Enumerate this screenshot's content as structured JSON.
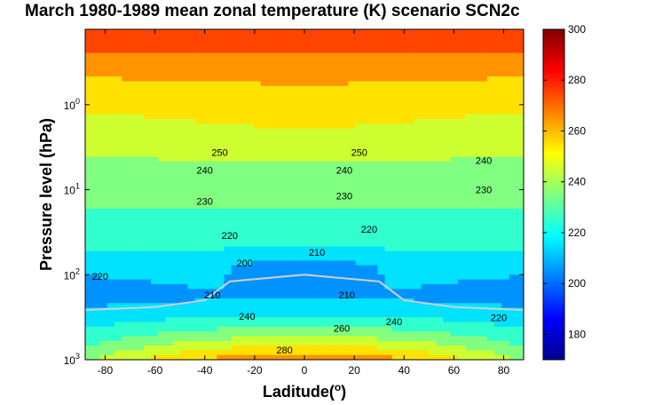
{
  "chart_data": {
    "type": "heatmap",
    "subtype": "filled-contour",
    "title": "March 1980-1989 mean zonal temperature (K) scenario SCN2c",
    "xlabel": "Laditude(o)",
    "xlabel_base": "Laditude(",
    "xlabel_sup": "o",
    "xlabel_close": ")",
    "ylabel": "Pressure level (hPa)",
    "xlim": [
      -88,
      88
    ],
    "ylim": [
      0.13,
      1000
    ],
    "yscale": "log",
    "ydirection": "reversed",
    "xticks": [
      "-80",
      "-60",
      "-40",
      "-20",
      "0",
      "20",
      "40",
      "60",
      "80"
    ],
    "xtick_values": [
      -80,
      -60,
      -40,
      -20,
      0,
      20,
      40,
      60,
      80
    ],
    "yticks": [
      {
        "base": "10",
        "exp": "0",
        "value": 1
      },
      {
        "base": "10",
        "exp": "1",
        "value": 10
      },
      {
        "base": "10",
        "exp": "2",
        "value": 100
      },
      {
        "base": "10",
        "exp": "3",
        "value": 1000
      }
    ],
    "colorbar": {
      "min": 170,
      "max": 300,
      "colormap": "jet",
      "ticks": [
        "180",
        "200",
        "220",
        "240",
        "260",
        "280",
        "300"
      ],
      "tick_values": [
        180,
        200,
        220,
        240,
        260,
        280,
        300
      ]
    },
    "contour_levels": [
      200,
      210,
      220,
      230,
      240,
      250,
      260,
      270,
      280,
      290
    ],
    "tropopause_line": {
      "color": "#d0d0d0",
      "lat": [
        -88,
        -60,
        -40,
        -30,
        0,
        30,
        40,
        60,
        88
      ],
      "p": [
        260,
        240,
        200,
        120,
        100,
        120,
        200,
        240,
        260
      ]
    },
    "contour_labels": [
      {
        "text": "250",
        "lat": -34,
        "p": 4
      },
      {
        "text": "250",
        "lat": 22,
        "p": 4
      },
      {
        "text": "240",
        "lat": -40,
        "p": 6.5
      },
      {
        "text": "240",
        "lat": 16,
        "p": 6.5
      },
      {
        "text": "240",
        "lat": 72,
        "p": 5
      },
      {
        "text": "230",
        "lat": -40,
        "p": 15
      },
      {
        "text": "230",
        "lat": 16,
        "p": 13
      },
      {
        "text": "230",
        "lat": 72,
        "p": 11
      },
      {
        "text": "220",
        "lat": -30,
        "p": 38
      },
      {
        "text": "220",
        "lat": 26,
        "p": 32
      },
      {
        "text": "210",
        "lat": 5,
        "p": 60
      },
      {
        "text": "200",
        "lat": -24,
        "p": 80
      },
      {
        "text": "210",
        "lat": -37,
        "p": 190
      },
      {
        "text": "210",
        "lat": 17,
        "p": 190
      },
      {
        "text": "220",
        "lat": -82,
        "p": 115
      },
      {
        "text": "240",
        "lat": -23,
        "p": 340
      },
      {
        "text": "280",
        "lat": -8,
        "p": 850
      },
      {
        "text": "260",
        "lat": 15,
        "p": 470
      },
      {
        "text": "240",
        "lat": 36,
        "p": 390
      },
      {
        "text": "220",
        "lat": 78,
        "p": 350
      }
    ]
  }
}
